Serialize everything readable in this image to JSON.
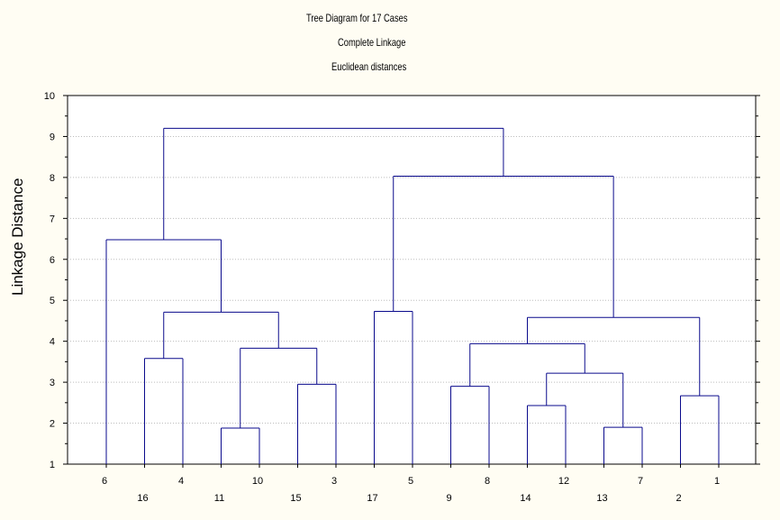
{
  "chart_data": {
    "type": "dendrogram",
    "title_lines": [
      "Tree Diagram for 17 Cases",
      "Complete Linkage",
      "Euclidean distances"
    ],
    "xlabel": "",
    "ylabel": "Linkage Distance",
    "ylim": [
      1,
      10
    ],
    "yticks": [
      1,
      2,
      3,
      4,
      5,
      6,
      7,
      8,
      9,
      10
    ],
    "grid": true,
    "leaf_order": [
      "6",
      "16",
      "4",
      "11",
      "10",
      "15",
      "3",
      "17",
      "5",
      "9",
      "8",
      "14",
      "12",
      "13",
      "7",
      "2",
      "1"
    ],
    "merges": [
      {
        "left": "11",
        "right": "10",
        "height": 1.88
      },
      {
        "left": "13",
        "right": "7",
        "height": 1.9
      },
      {
        "left": "12",
        "right": "14",
        "height": 2.43
      },
      {
        "left": "2",
        "right": "1",
        "height": 2.67
      },
      {
        "left": "9",
        "right": "8",
        "height": 2.9
      },
      {
        "left": "15",
        "right": "3",
        "height": 2.95
      },
      {
        "left": "16",
        "right": "4",
        "height": 3.58
      },
      {
        "left": "[12,14]",
        "right": "[13,7]",
        "height": 3.22
      },
      {
        "left": "[11,10]",
        "right": "[15,3]",
        "height": 3.83
      },
      {
        "left": "[9,8]",
        "right": "[12,14,13,7]",
        "height": 3.94
      },
      {
        "left": "[9,8,12,14,13,7]",
        "right": "[2,1]",
        "height": 4.58
      },
      {
        "left": "17",
        "right": "5",
        "height": 4.73
      },
      {
        "left": "[16,4]",
        "right": "[11,10,15,3]",
        "height": 4.71
      },
      {
        "left": "6",
        "right": "[16,4,11,10,15,3]",
        "height": 6.48
      },
      {
        "left": "[17,5]",
        "right": "[9,8,12,14,13,7,2,1]",
        "height": 8.03
      },
      {
        "left": "[6,...,3]",
        "right": "[17,...,1]",
        "height": 9.2
      }
    ]
  },
  "colors": {
    "background": "#fffdf3",
    "plot_area": "#ffffff",
    "tree_line": "#0a0a8c",
    "grid_line": "#bdbdbd"
  }
}
